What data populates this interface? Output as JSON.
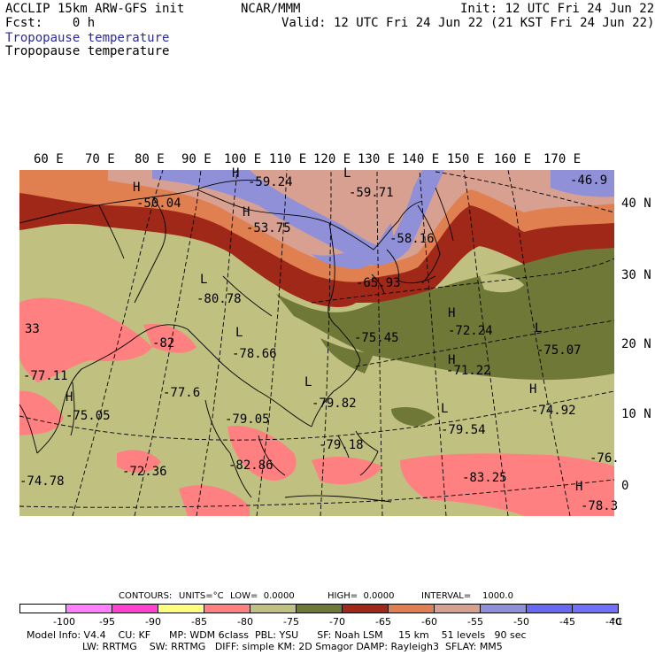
{
  "header": {
    "line1_left": "ACCLIP 15km ARW-GFS init",
    "line1_center": "NCAR/MMM",
    "line1_right": "Init: 12 UTC Fri 24 Jun 22",
    "line2_left": "Fcst:    0 h",
    "line2_right": "Valid: 12 UTC Fri 24 Jun 22 (21 KST Fri 24 Jun 22)",
    "field_title_blue": "Tropopause temperature",
    "field_title_black": "Tropopause temperature"
  },
  "map": {
    "longitude_labels": [
      "60 E",
      "70 E",
      "80 E",
      "90 E",
      "100 E",
      "110 E",
      "120 E",
      "130 E",
      "140 E",
      "150 E",
      "160 E",
      "170 E"
    ],
    "latitude_labels": [
      "40 N",
      "30 N",
      "20 N",
      "10 N",
      "0"
    ],
    "extrema_labels": [
      {
        "mark": "H",
        "value": "-59.24"
      },
      {
        "mark": "L",
        "value": "-59.71"
      },
      {
        "mark": "",
        "value": "-46.9"
      },
      {
        "mark": "H",
        "value": "-50.04"
      },
      {
        "mark": "H",
        "value": "-53.75"
      },
      {
        "mark": "",
        "value": "-58.16"
      },
      {
        "mark": "L",
        "value": "-80.78"
      },
      {
        "mark": "",
        "value": "-65.93"
      },
      {
        "mark": "H",
        "value": "-72.24"
      },
      {
        "mark": "",
        "value": "-75.45"
      },
      {
        "mark": "L",
        "value": "-75.07"
      },
      {
        "mark": "L",
        "value": "-78.66"
      },
      {
        "mark": "",
        "value": "-82"
      },
      {
        "mark": "",
        "value": "-77.11"
      },
      {
        "mark": "H",
        "value": "-71.22"
      },
      {
        "mark": "",
        "value": "-77.6"
      },
      {
        "mark": "L",
        "value": "-79.82"
      },
      {
        "mark": "H",
        "value": "-74.92"
      },
      {
        "mark": "H",
        "value": "-75.05"
      },
      {
        "mark": "",
        "value": "-79.05"
      },
      {
        "mark": "L",
        "value": "-79.54"
      },
      {
        "mark": "",
        "value": "-79.18"
      },
      {
        "mark": "",
        "value": "-82.86"
      },
      {
        "mark": "",
        "value": "-72.36"
      },
      {
        "mark": "",
        "value": "-83.25"
      },
      {
        "mark": "",
        "value": "-76."
      },
      {
        "mark": "",
        "value": "-74.78"
      },
      {
        "mark": "H",
        "value": "-78.3"
      },
      {
        "mark": "",
        "value": "33"
      }
    ]
  },
  "contour_info": {
    "contours": "CONTOURS:",
    "units": "UNITS=°C",
    "low": "LOW=  0.0000",
    "high": "HIGH=  0.0000",
    "interval": "INTERVAL=    1000.0"
  },
  "colorbar": {
    "colors": [
      "#ffffff",
      "#ff80ff",
      "#ff40d0",
      "#ffff80",
      "#ff8080",
      "#c0c080",
      "#707838",
      "#a02818",
      "#e08050",
      "#d8a090",
      "#9090d8",
      "#6868f0",
      "#7070f8"
    ],
    "labels": [
      "-100",
      "-95",
      "-90",
      "-85",
      "-80",
      "-75",
      "-70",
      "-65",
      "-60",
      "-55",
      "-50",
      "-45",
      "-40"
    ],
    "unit": "°C"
  },
  "footer": {
    "line1": "Model Info: V4.4    CU: KF      MP: WDM 6class  PBL: YSU      SF: Noah LSM     15 km    51 levels   90 sec",
    "line2": "                  LW: RRTMG    SW: RRTMG   DIFF: simple KM: 2D Smagor DAMP: Rayleigh3  SFLAY: MM5"
  }
}
